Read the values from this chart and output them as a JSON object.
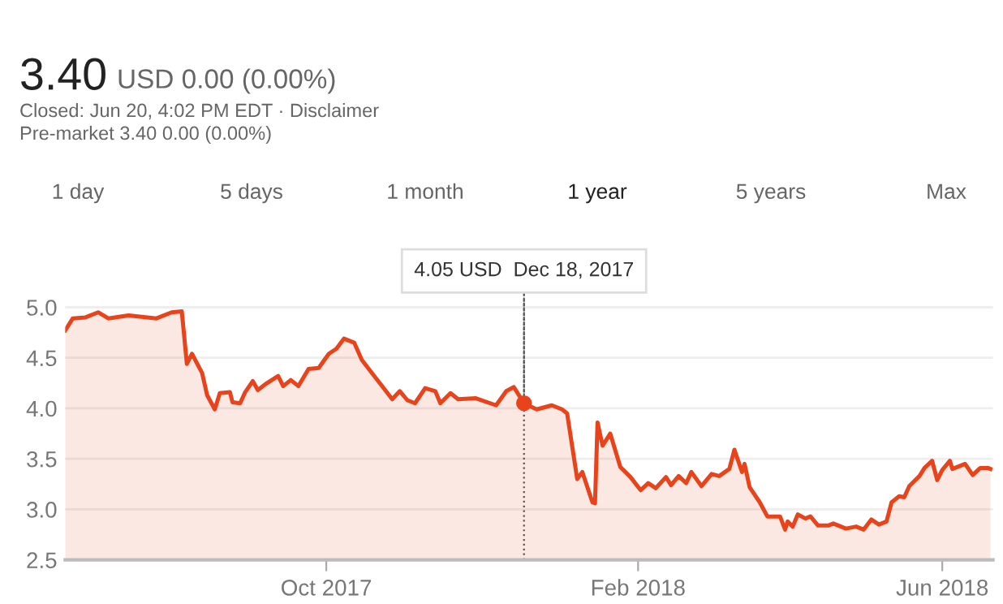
{
  "chart_data": {
    "type": "area",
    "title": "3.40",
    "subtitle": "USD 0.00 (0.00%)",
    "annotations": [
      "Closed: Jun 20, 4:02 PM EDT · Disclaimer",
      "Pre-market 3.40 0.00 (0.00%)",
      "1 day",
      "5 days",
      "1 month",
      "1 year",
      "5 years",
      "Max",
      {
        "text": "4.05 USD  Dec 18, 2017",
        "x": "2017-12-18",
        "y": 4.05
      }
    ],
    "x": [
      "2017-06-20",
      "2017-06-23",
      "2017-06-28",
      "2017-07-03",
      "2017-07-07",
      "2017-07-15",
      "2017-07-26",
      "2017-08-01",
      "2017-08-05",
      "2017-08-07",
      "2017-08-09",
      "2017-08-13",
      "2017-08-15",
      "2017-08-18",
      "2017-08-20",
      "2017-08-24",
      "2017-08-25",
      "2017-08-28",
      "2017-08-30",
      "2017-09-02",
      "2017-09-04",
      "2017-09-07",
      "2017-09-12",
      "2017-09-14",
      "2017-09-17",
      "2017-09-20",
      "2017-09-24",
      "2017-09-28",
      "2017-10-02",
      "2017-10-05",
      "2017-10-08",
      "2017-10-12",
      "2017-10-15",
      "2017-10-19",
      "2017-10-23",
      "2017-10-27",
      "2017-10-30",
      "2017-11-02",
      "2017-11-05",
      "2017-11-09",
      "2017-11-13",
      "2017-11-15",
      "2017-11-19",
      "2017-11-22",
      "2017-11-29",
      "2017-12-07",
      "2017-12-11",
      "2017-12-14",
      "2017-12-18",
      "2017-12-23",
      "2017-12-29",
      "2018-01-02",
      "2018-01-04",
      "2018-01-08",
      "2018-01-10",
      "2018-01-14",
      "2018-01-15",
      "2018-01-16",
      "2018-01-18",
      "2018-01-21",
      "2018-01-25",
      "2018-01-29",
      "2018-02-02",
      "2018-02-05",
      "2018-02-08",
      "2018-02-12",
      "2018-02-14",
      "2018-02-17",
      "2018-02-20",
      "2018-02-22",
      "2018-02-26",
      "2018-03-02",
      "2018-03-05",
      "2018-03-09",
      "2018-03-11",
      "2018-03-14",
      "2018-03-15",
      "2018-03-17",
      "2018-03-21",
      "2018-03-24",
      "2018-03-29",
      "2018-03-31",
      "2018-04-01",
      "2018-04-03",
      "2018-04-05",
      "2018-04-08",
      "2018-04-10",
      "2018-04-13",
      "2018-04-17",
      "2018-04-19",
      "2018-04-24",
      "2018-04-28",
      "2018-05-01",
      "2018-05-04",
      "2018-05-07",
      "2018-05-10",
      "2018-05-12",
      "2018-05-15",
      "2018-05-17",
      "2018-05-19",
      "2018-05-23",
      "2018-05-25",
      "2018-05-28",
      "2018-05-30",
      "2018-06-01",
      "2018-06-04",
      "2018-06-05",
      "2018-06-10",
      "2018-06-13",
      "2018-06-16",
      "2018-06-19",
      "2018-06-20"
    ],
    "series": [
      {
        "color": "#e8431a",
        "values": [
          4.77,
          4.89,
          4.9,
          4.95,
          4.89,
          4.92,
          4.89,
          4.95,
          4.96,
          4.44,
          4.54,
          4.35,
          4.13,
          3.99,
          4.15,
          4.16,
          4.06,
          4.05,
          4.16,
          4.27,
          4.18,
          4.24,
          4.32,
          4.22,
          4.28,
          4.22,
          4.39,
          4.4,
          4.54,
          4.59,
          4.69,
          4.65,
          4.48,
          4.35,
          4.22,
          4.09,
          4.17,
          4.08,
          4.05,
          4.2,
          4.17,
          4.05,
          4.15,
          4.09,
          4.1,
          4.03,
          4.17,
          4.21,
          4.05,
          3.99,
          4.03,
          3.99,
          3.95,
          3.3,
          3.37,
          3.07,
          3.06,
          3.86,
          3.63,
          3.75,
          3.42,
          3.32,
          3.19,
          3.26,
          3.21,
          3.32,
          3.24,
          3.33,
          3.26,
          3.37,
          3.23,
          3.35,
          3.33,
          3.4,
          3.59,
          3.37,
          3.45,
          3.22,
          3.07,
          2.93,
          2.93,
          2.8,
          2.88,
          2.83,
          2.95,
          2.91,
          2.93,
          2.84,
          2.84,
          2.86,
          2.81,
          2.83,
          2.8,
          2.9,
          2.85,
          2.88,
          3.07,
          3.13,
          3.12,
          3.23,
          3.33,
          3.41,
          3.48,
          3.29,
          3.39,
          3.48,
          3.4,
          3.45,
          3.34,
          3.41,
          3.41,
          3.4
        ]
      }
    ],
    "xlim": [
      "2017-06-20",
      "2018-06-21"
    ],
    "xticks": [
      {
        "value": "2017-10-01",
        "label": "Oct 2017"
      },
      {
        "value": "2018-02-01",
        "label": "Feb 2018"
      },
      {
        "value": "2018-06-01",
        "label": "Jun 2018"
      }
    ],
    "ylim": [
      2.5,
      5.1
    ],
    "yticks": [
      {
        "value": 2.5,
        "label": "2.5"
      },
      {
        "value": 3.0,
        "label": "3.0"
      },
      {
        "value": 3.5,
        "label": "3.5"
      },
      {
        "value": 4.0,
        "label": "4.0"
      },
      {
        "value": 4.5,
        "label": "4.5"
      },
      {
        "value": 5.0,
        "label": "5.0"
      }
    ],
    "grid": "y",
    "marker": "none",
    "line_style": "solid",
    "ref_lines": [
      {
        "axis": "x",
        "value": "2017-12-18",
        "line_style": "dotted",
        "color": "#555555"
      }
    ]
  }
}
